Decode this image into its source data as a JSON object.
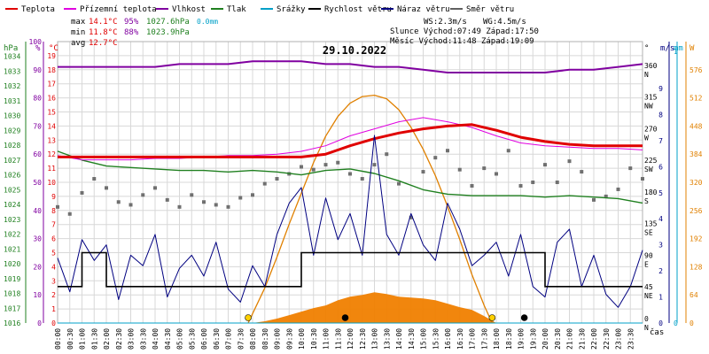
{
  "chart_data": {
    "type": "line",
    "title": "29.10.2022",
    "legend": [
      {
        "name": "Teplota",
        "color": "#e00000"
      },
      {
        "name": "Přízemní teplota",
        "color": "#e000e0"
      },
      {
        "name": "Vlhkost",
        "color": "#8000a0"
      },
      {
        "name": "Tlak",
        "color": "#208020"
      },
      {
        "name": "Srážky",
        "color": "#00a0c8"
      },
      {
        "name": "Rychlost větru",
        "color": "#000000"
      },
      {
        "name": "Náraz větru",
        "color": "#000080"
      },
      {
        "name": "Směr větru",
        "color": "#606060"
      }
    ],
    "stats": [
      {
        "label": "max",
        "temp": "14.1°C",
        "hum": "95%",
        "press": "1027.6hPa",
        "rain": "0.0mm"
      },
      {
        "label": "min",
        "temp": "11.8°C",
        "hum": "88%",
        "press": "1023.9hPa",
        "rain": ""
      },
      {
        "label": "avg",
        "temp": "12.7°C",
        "hum": "",
        "press": "",
        "rain": ""
      }
    ],
    "info": {
      "ws": "WS:2.3m/s",
      "wg": "WG:4.5m/s",
      "sun": "Slunce Východ:07:49  Západ:17:50",
      "moon": "Měsíc  Východ:11:48  Západ:19:09"
    },
    "axes": {
      "hpa": {
        "label": "hPa",
        "range": [
          1016,
          1035
        ],
        "ticks": [
          1016,
          1017,
          1018,
          1019,
          1020,
          1021,
          1022,
          1023,
          1024,
          1025,
          1026,
          1027,
          1028,
          1029,
          1030,
          1031,
          1032,
          1033,
          1034
        ]
      },
      "pct": {
        "label": "%",
        "range": [
          0,
          100
        ],
        "ticks": [
          0,
          10,
          20,
          30,
          40,
          50,
          60,
          70,
          80,
          90,
          100
        ]
      },
      "temp": {
        "label": "°C",
        "range": [
          0,
          20
        ],
        "ticks": [
          0,
          1,
          2,
          3,
          4,
          5,
          6,
          7,
          8,
          9,
          10,
          11,
          12,
          13,
          14,
          15,
          16,
          17,
          18,
          19
        ]
      },
      "dir": {
        "label": "°",
        "ticks": [
          {
            "v": 0,
            "t": "0",
            "d": "N"
          },
          {
            "v": 45,
            "t": "45",
            "d": "NE"
          },
          {
            "v": 90,
            "t": "90",
            "d": "E"
          },
          {
            "v": 135,
            "t": "135",
            "d": "SE"
          },
          {
            "v": 180,
            "t": "180",
            "d": "S"
          },
          {
            "v": 225,
            "t": "225",
            "d": "SW"
          },
          {
            "v": 270,
            "t": "270",
            "d": "W"
          },
          {
            "v": 315,
            "t": "315",
            "d": "NW"
          },
          {
            "v": 360,
            "t": "360",
            "d": "N"
          }
        ]
      },
      "ms": {
        "label": "m/s",
        "range": [
          0,
          10.8
        ]
      },
      "mm": {
        "label": "mm",
        "range": [
          0,
          1
        ],
        "ticks": [
          0,
          1
        ]
      },
      "w": {
        "label": "W",
        "range": [
          0,
          640
        ],
        "ticks": [
          0,
          64,
          128,
          192,
          256,
          320,
          384,
          448,
          512,
          576
        ]
      },
      "x_label": "čas",
      "x_ticks": [
        "00:00",
        "00:30",
        "01:00",
        "01:30",
        "02:00",
        "02:30",
        "03:00",
        "03:30",
        "04:00",
        "04:30",
        "05:00",
        "05:30",
        "06:00",
        "06:30",
        "07:00",
        "07:30",
        "08:00",
        "08:30",
        "09:00",
        "09:30",
        "10:00",
        "10:30",
        "11:00",
        "11:30",
        "12:00",
        "12:30",
        "13:00",
        "13:30",
        "14:00",
        "14:30",
        "15:00",
        "15:30",
        "16:00",
        "16:30",
        "17:00",
        "17:30",
        "18:00",
        "18:30",
        "19:00",
        "19:30",
        "20:00",
        "20:30",
        "21:00",
        "21:30",
        "22:00",
        "22:30",
        "23:00",
        "23:30"
      ]
    },
    "series": {
      "teplota": {
        "x": [
          0,
          1,
          2,
          3,
          4,
          5,
          6,
          7,
          8,
          9,
          10,
          11,
          12,
          13,
          14,
          15,
          16,
          17,
          18,
          19,
          20,
          21,
          22,
          23,
          24
        ],
        "y": [
          11.8,
          11.8,
          11.8,
          11.8,
          11.8,
          11.8,
          11.8,
          11.8,
          11.8,
          11.8,
          11.8,
          12.0,
          12.6,
          13.1,
          13.5,
          13.8,
          14.0,
          14.1,
          13.7,
          13.2,
          12.9,
          12.7,
          12.6,
          12.6,
          12.6
        ]
      },
      "prizemni": {
        "x": [
          0,
          1,
          2,
          3,
          4,
          5,
          6,
          7,
          8,
          9,
          10,
          11,
          12,
          13,
          14,
          15,
          16,
          17,
          18,
          19,
          20,
          21,
          22,
          23,
          24
        ],
        "y": [
          11.9,
          11.6,
          11.6,
          11.6,
          11.7,
          11.7,
          11.8,
          11.9,
          11.9,
          12.0,
          12.2,
          12.6,
          13.3,
          13.8,
          14.3,
          14.6,
          14.3,
          13.9,
          13.3,
          12.8,
          12.6,
          12.5,
          12.4,
          12.4,
          12.3
        ]
      },
      "vlhkost": {
        "x": [
          0,
          1,
          2,
          3,
          4,
          5,
          6,
          7,
          8,
          9,
          10,
          11,
          12,
          13,
          14,
          15,
          16,
          17,
          18,
          19,
          20,
          21,
          22,
          23,
          24
        ],
        "y": [
          91,
          91,
          91,
          91,
          91,
          92,
          92,
          92,
          93,
          93,
          93,
          92,
          92,
          91,
          91,
          90,
          89,
          89,
          89,
          89,
          89,
          90,
          90,
          91,
          92
        ]
      },
      "tlak": {
        "x": [
          0,
          1,
          2,
          3,
          4,
          5,
          6,
          7,
          8,
          9,
          10,
          11,
          12,
          13,
          14,
          15,
          16,
          17,
          18,
          19,
          20,
          21,
          22,
          23,
          24
        ],
        "y": [
          1027.6,
          1027.0,
          1026.6,
          1026.5,
          1026.4,
          1026.3,
          1026.3,
          1026.2,
          1026.3,
          1026.2,
          1026.0,
          1026.3,
          1026.4,
          1026.1,
          1025.6,
          1025.0,
          1024.7,
          1024.6,
          1024.6,
          1024.6,
          1024.5,
          1024.6,
          1024.5,
          1024.4,
          1024.1
        ]
      },
      "srazky": {
        "x": [
          0,
          24
        ],
        "y": [
          0,
          0
        ]
      },
      "rychlost": {
        "x": [
          0,
          1,
          2,
          3,
          4,
          5,
          6,
          7,
          8,
          9,
          10,
          11,
          12,
          13,
          14,
          15,
          16,
          17,
          18,
          19,
          20,
          21,
          22,
          23,
          24
        ],
        "y": [
          1.4,
          2.7,
          1.4,
          1.4,
          1.4,
          1.4,
          1.4,
          1.4,
          1.4,
          1.4,
          2.7,
          2.7,
          2.7,
          2.7,
          2.7,
          2.7,
          2.7,
          2.7,
          2.7,
          2.7,
          1.4,
          1.4,
          1.4,
          1.4,
          1.4
        ]
      },
      "naraz": {
        "x": [
          0,
          0.5,
          1,
          1.5,
          2,
          2.5,
          3,
          3.5,
          4,
          4.5,
          5,
          5.5,
          6,
          6.5,
          7,
          7.5,
          8,
          8.5,
          9,
          9.5,
          10,
          10.5,
          11,
          11.5,
          12,
          12.5,
          13,
          13.5,
          14,
          14.5,
          15,
          15.5,
          16,
          16.5,
          17,
          17.5,
          18,
          18.5,
          19,
          19.5,
          20,
          20.5,
          21,
          21.5,
          22,
          22.5,
          23,
          23.5,
          24
        ],
        "y": [
          2.5,
          1.2,
          3.2,
          2.4,
          3.0,
          0.9,
          2.6,
          2.2,
          3.4,
          1.0,
          2.1,
          2.6,
          1.8,
          3.1,
          1.3,
          0.8,
          2.2,
          1.4,
          3.4,
          4.6,
          5.2,
          2.6,
          4.8,
          3.2,
          4.2,
          2.6,
          7.2,
          3.4,
          2.6,
          4.2,
          3.0,
          2.4,
          4.6,
          3.6,
          2.2,
          2.6,
          3.1,
          1.8,
          3.4,
          1.4,
          1.0,
          3.1,
          3.6,
          1.4,
          2.6,
          1.1,
          0.6,
          1.4,
          2.8
        ]
      },
      "smer": {
        "x": [
          0,
          0.5,
          1,
          1.5,
          2,
          2.5,
          3,
          3.5,
          4,
          4.5,
          5,
          5.5,
          6,
          6.5,
          7,
          7.5,
          8,
          8.5,
          9,
          9.5,
          10,
          10.5,
          11,
          11.5,
          12,
          12.5,
          13,
          13.5,
          14,
          14.5,
          15,
          15.5,
          16,
          16.5,
          17,
          17.5,
          18,
          18.5,
          19,
          19.5,
          20,
          20.5,
          21,
          21.5,
          22,
          22.5,
          23,
          23.5,
          24
        ],
        "y": [
          165,
          155,
          185,
          205,
          192,
          172,
          168,
          182,
          192,
          175,
          165,
          182,
          172,
          168,
          165,
          178,
          182,
          198,
          205,
          212,
          222,
          218,
          225,
          228,
          212,
          205,
          225,
          240,
          198,
          150,
          215,
          235,
          245,
          218,
          195,
          220,
          212,
          245,
          195,
          200,
          225,
          200,
          230,
          215,
          175,
          180,
          190,
          220,
          205
        ]
      },
      "slunce_w": {
        "x": [
          7.82,
          8.5,
          9,
          9.5,
          10,
          10.5,
          11,
          11.5,
          12,
          12.5,
          13,
          13.5,
          14,
          14.5,
          15,
          15.5,
          16,
          16.5,
          17,
          17.5,
          17.83
        ],
        "y": [
          0,
          80,
          150,
          225,
          295,
          365,
          425,
          470,
          500,
          515,
          518,
          510,
          485,
          445,
          395,
          335,
          265,
          190,
          110,
          40,
          0
        ]
      },
      "zareni": {
        "x": [
          8,
          8.5,
          9,
          9.5,
          10,
          10.5,
          11,
          11.5,
          12,
          12.5,
          13,
          13.5,
          14,
          14.5,
          15,
          15.5,
          16,
          16.5,
          17,
          17.5,
          18
        ],
        "y": [
          0,
          4,
          10,
          18,
          26,
          34,
          40,
          52,
          60,
          64,
          70,
          66,
          60,
          58,
          56,
          52,
          44,
          36,
          30,
          16,
          0
        ]
      },
      "moon_w": {
        "x": [
          11.8,
          19.15
        ],
        "y": [
          0,
          0
        ]
      }
    },
    "markers": [
      {
        "name": "sunrise",
        "x": 7.82,
        "color": "#ffd000"
      },
      {
        "name": "moonrise",
        "x": 11.8,
        "color": "#000000"
      },
      {
        "name": "sunset",
        "x": 17.83,
        "color": "#ffd000"
      },
      {
        "name": "moonset",
        "x": 19.15,
        "color": "#000000"
      }
    ]
  }
}
